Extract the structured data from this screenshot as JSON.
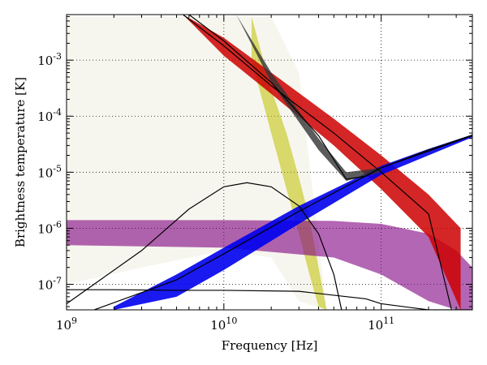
{
  "chart_data": {
    "type": "line",
    "title": "",
    "xlabel": "Frequency [Hz]",
    "ylabel": "Brightness temperature [K]",
    "xscale": "log",
    "yscale": "log",
    "xlim": [
      1000000000.0,
      380000000000.0
    ],
    "ylim": [
      3.5e-08,
      0.0065
    ],
    "grid": true,
    "legend": "none",
    "x_ticks": [
      {
        "value": 1000000000.0,
        "base": "10",
        "exp": "9"
      },
      {
        "value": 10000000000.0,
        "base": "10",
        "exp": "10"
      },
      {
        "value": 100000000000.0,
        "base": "10",
        "exp": "11"
      }
    ],
    "y_ticks": [
      {
        "value": 1e-07,
        "base": "10",
        "exp": "-7"
      },
      {
        "value": 1e-06,
        "base": "10",
        "exp": "-6"
      },
      {
        "value": 1e-05,
        "base": "10",
        "exp": "-5"
      },
      {
        "value": 0.0001,
        "base": "10",
        "exp": "-4"
      },
      {
        "value": 0.001,
        "base": "10",
        "exp": "-3"
      }
    ],
    "bands": [
      {
        "color": "#8a8a20",
        "alpha": 0.08,
        "x": [
          1000000000.0,
          3000000000.0,
          10000000000.0,
          20000000000.0,
          30000000000.0,
          45000000000.0
        ],
        "upper": [
          0.006,
          0.006,
          0.006,
          0.006,
          0.0006,
          3.5e-08
        ],
        "lower": [
          1e-07,
          2e-07,
          4e-07,
          3e-07,
          5e-08,
          3.5e-08
        ]
      },
      {
        "color": "#c0c000",
        "alpha": 0.55,
        "x": [
          15000000000.0,
          20000000000.0,
          25000000000.0,
          30000000000.0,
          35000000000.0,
          40000000000.0,
          45000000000.0
        ],
        "upper": [
          0.006,
          0.0003,
          5e-05,
          8e-06,
          1.5e-06,
          2e-07,
          3.5e-08
        ],
        "lower": [
          0.001,
          5e-05,
          5e-06,
          8e-07,
          1.5e-07,
          4e-08,
          3.5e-08
        ]
      },
      {
        "color": "#800080",
        "alpha": 0.6,
        "x": [
          1000000000.0,
          10000000000.0,
          50000000000.0,
          100000000000.0,
          200000000000.0,
          300000000000.0,
          380000000000.0
        ],
        "upper": [
          1.4e-06,
          1.4e-06,
          1.35e-06,
          1.2e-06,
          8e-07,
          4e-07,
          2e-07
        ],
        "lower": [
          5e-07,
          4.5e-07,
          3e-07,
          1.5e-07,
          5e-08,
          3.5e-08,
          3.5e-08
        ]
      },
      {
        "color": "#cc0000",
        "alpha": 0.85,
        "x": [
          5500000000.0,
          10000000000.0,
          20000000000.0,
          50000000000.0,
          100000000000.0,
          200000000000.0,
          320000000000.0
        ],
        "upper": [
          0.0065,
          0.0025,
          0.0006,
          9e-05,
          2e-05,
          4e-06,
          1e-06
        ],
        "lower": [
          0.0065,
          0.0012,
          0.00025,
          3e-05,
          5e-06,
          7e-07,
          3.5e-08
        ]
      },
      {
        "color": "#0000ee",
        "alpha": 0.9,
        "x": [
          2000000000.0,
          5000000000.0,
          10000000000.0,
          30000000000.0,
          100000000000.0,
          200000000000.0,
          380000000000.0
        ],
        "upper": [
          4e-08,
          1.5e-07,
          4.5e-07,
          2.5e-06,
          1.3e-05,
          2.6e-05,
          4.7e-05
        ],
        "lower": [
          3.5e-08,
          6e-08,
          1.8e-07,
          1.2e-06,
          9e-06,
          2e-05,
          4.2e-05
        ]
      },
      {
        "color": "#333333",
        "alpha": 0.8,
        "x": [
          12000000000.0,
          20000000000.0,
          40000000000.0,
          60000000000.0,
          100000000000.0
        ],
        "upper": [
          0.0065,
          0.0006,
          4e-05,
          1e-05,
          1.2e-05
        ],
        "lower": [
          0.0065,
          0.0004,
          2.5e-05,
          7e-06,
          1e-05
        ]
      }
    ],
    "series": [
      {
        "color": "#000000",
        "x": [
          6000000000.0,
          10000000000.0,
          20000000000.0,
          40000000000.0,
          60000000000.0,
          80000000000.0,
          100000000000.0,
          200000000000.0,
          380000000000.0
        ],
        "y": [
          0.0065,
          0.0022,
          0.0004,
          4.5e-05,
          7.5e-06,
          8.5e-06,
          1.2e-05,
          2.5e-05,
          4.6e-05
        ]
      },
      {
        "color": "#000000",
        "x": [
          1000000000.0,
          3000000000.0,
          6000000000.0,
          10000000000.0,
          14000000000.0,
          20000000000.0,
          30000000000.0,
          40000000000.0,
          50000000000.0,
          56000000000.0
        ],
        "y": [
          4.5e-08,
          4e-07,
          2.2e-06,
          5.5e-06,
          6.5e-06,
          5.5e-06,
          2.5e-06,
          8e-07,
          1.5e-07,
          3.5e-08
        ]
      },
      {
        "color": "#000000",
        "x": [
          1000000000.0,
          2000000000.0,
          5000000000.0,
          10000000000.0,
          30000000000.0,
          80000000000.0,
          100000000000.0,
          200000000000.0,
          380000000000.0
        ],
        "y": [
          8e-08,
          8e-08,
          7.8e-08,
          7.8e-08,
          7.5e-08,
          5.5e-08,
          4.5e-08,
          3.5e-08,
          3.5e-08
        ]
      },
      {
        "color": "#000000",
        "x": [
          1500000000.0,
          5000000000.0,
          10000000000.0,
          30000000000.0,
          100000000000.0,
          380000000000.0
        ],
        "y": [
          3.5e-08,
          1.2e-07,
          3.5e-07,
          2e-06,
          1.2e-05,
          4.5e-05
        ]
      },
      {
        "color": "#000000",
        "x": [
          5500000000.0,
          10000000000.0,
          20000000000.0,
          50000000000.0,
          100000000000.0,
          200000000000.0,
          280000000000.0
        ],
        "y": [
          0.0065,
          0.0018,
          0.00035,
          5e-05,
          1e-05,
          1.8e-06,
          3.5e-08
        ]
      }
    ]
  }
}
